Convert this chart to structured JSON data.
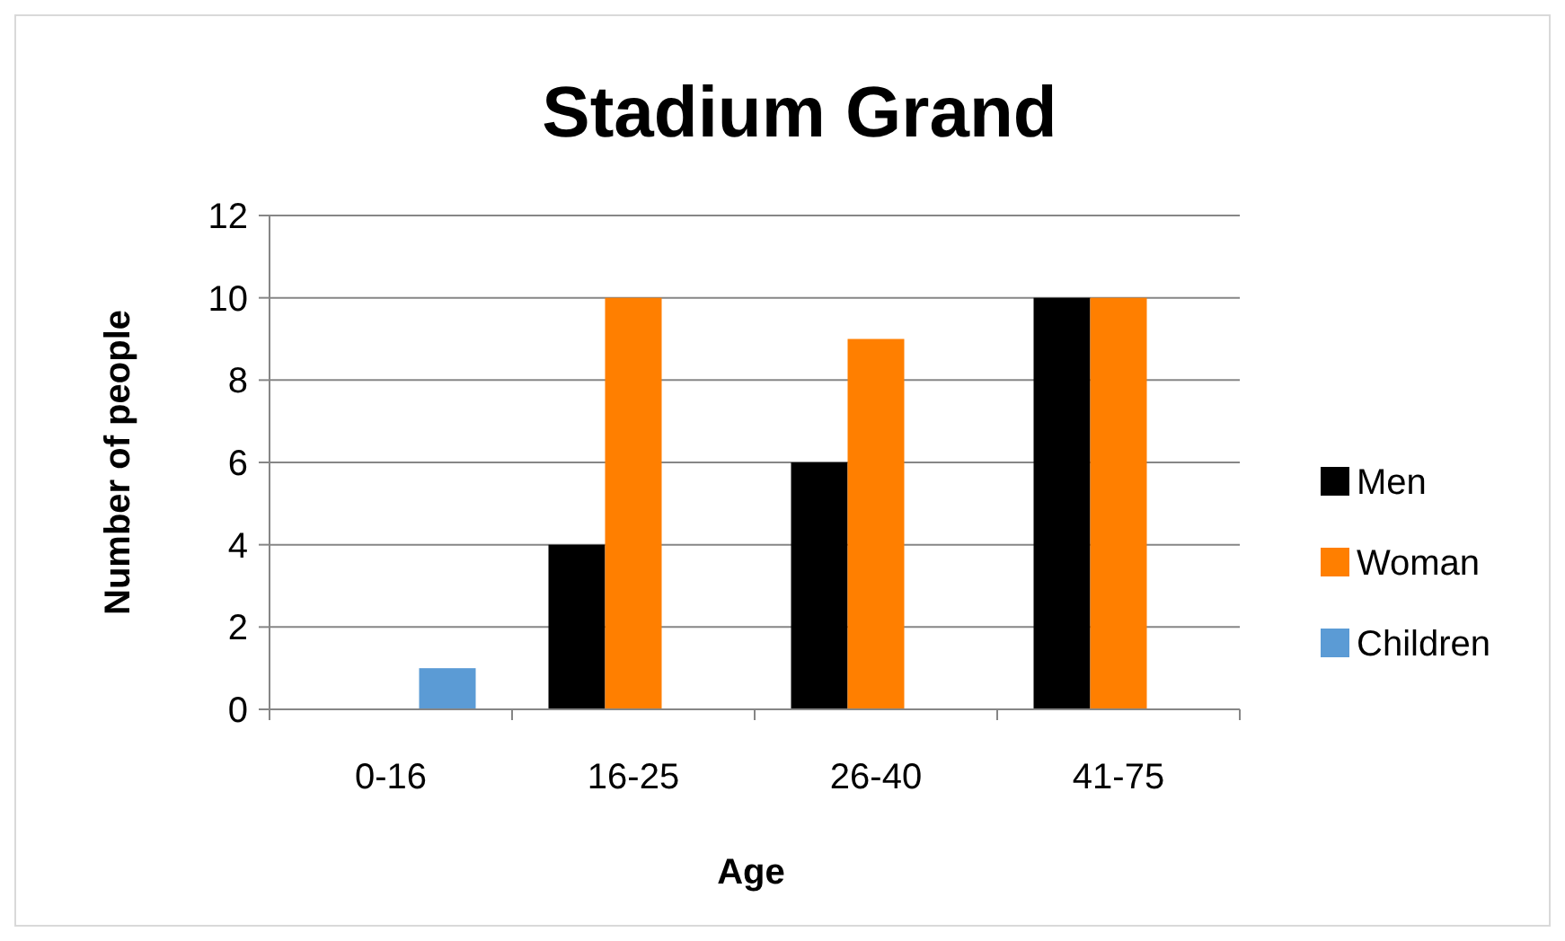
{
  "chart_data": {
    "type": "bar",
    "title": "Stadium Grand",
    "xlabel": "Age",
    "ylabel": "Number of people",
    "categories": [
      "0-16",
      "16-25",
      "26-40",
      "41-75"
    ],
    "series": [
      {
        "name": "Men",
        "color": "#000000",
        "values": [
          0,
          4,
          6,
          10
        ]
      },
      {
        "name": "Woman",
        "color": "#ff7f00",
        "values": [
          0,
          10,
          9,
          10
        ]
      },
      {
        "name": "Children",
        "color": "#5b9bd5",
        "values": [
          1,
          0,
          0,
          0
        ]
      }
    ],
    "ylim": [
      0,
      12
    ],
    "yticks": [
      0,
      2,
      4,
      6,
      8,
      10,
      12
    ],
    "grid": "y",
    "legend": "right"
  }
}
